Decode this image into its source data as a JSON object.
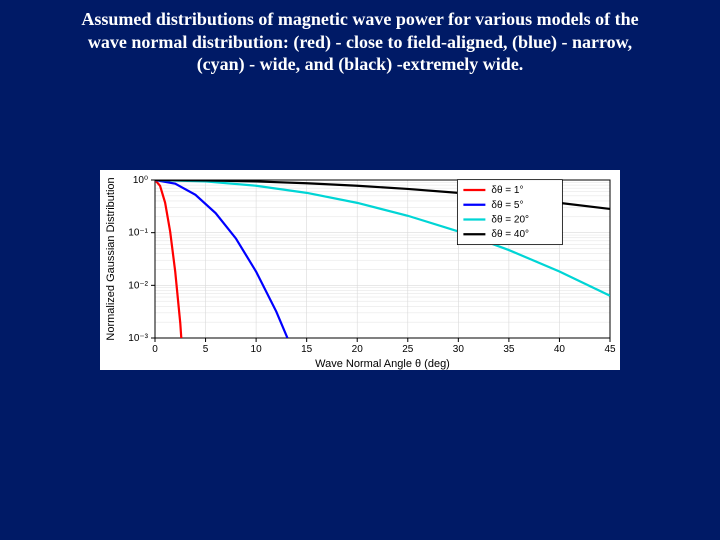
{
  "title_line1": "Assumed distributions of magnetic wave power for various models of the",
  "title_line2": "wave normal distribution: (red) - close to field-aligned, (blue) - narrow,",
  "title_line3": "(cyan) - wide, and (black) -extremely wide.",
  "chart": {
    "type": "line",
    "background_color": "#ffffff",
    "grid_color": "#d9d9d9",
    "axis_color": "#000000",
    "xlabel": "Wave Normal Angle θ (deg)",
    "ylabel": "Normalized Gaussian Distribution",
    "label_fontsize": 11,
    "tick_fontsize": 10,
    "xlim": [
      0,
      45
    ],
    "xticks": [
      0,
      5,
      10,
      15,
      20,
      25,
      30,
      35,
      40,
      45
    ],
    "ylim_log": [
      -3,
      0
    ],
    "yticks_exp": [
      -3,
      -2,
      -1,
      0
    ],
    "ytick_labels": [
      "10⁻³",
      "10⁻²",
      "10⁻¹",
      "10⁰"
    ],
    "series": [
      {
        "name": "red",
        "color": "#ff0000",
        "width": 2.2,
        "legend": "δθ = 1°",
        "points": [
          {
            "x": 0,
            "y": 0
          },
          {
            "x": 0.5,
            "y": -0.11
          },
          {
            "x": 1.0,
            "y": -0.43
          },
          {
            "x": 1.5,
            "y": -0.98
          },
          {
            "x": 2.0,
            "y": -1.74
          },
          {
            "x": 2.5,
            "y": -2.72
          },
          {
            "x": 2.6,
            "y": -3.0
          }
        ]
      },
      {
        "name": "blue",
        "color": "#0000ff",
        "width": 2.2,
        "legend": "δθ = 5°",
        "points": [
          {
            "x": 0,
            "y": 0
          },
          {
            "x": 2,
            "y": -0.07
          },
          {
            "x": 4,
            "y": -0.28
          },
          {
            "x": 6,
            "y": -0.63
          },
          {
            "x": 8,
            "y": -1.11
          },
          {
            "x": 10,
            "y": -1.74
          },
          {
            "x": 12,
            "y": -2.5
          },
          {
            "x": 13.1,
            "y": -3.0
          }
        ]
      },
      {
        "name": "cyan",
        "color": "#00d5d5",
        "width": 2.2,
        "legend": "δθ = 20°",
        "points": [
          {
            "x": 0,
            "y": 0
          },
          {
            "x": 5,
            "y": -0.027
          },
          {
            "x": 10,
            "y": -0.109
          },
          {
            "x": 15,
            "y": -0.244
          },
          {
            "x": 20,
            "y": -0.434
          },
          {
            "x": 25,
            "y": -0.679
          },
          {
            "x": 30,
            "y": -0.977
          },
          {
            "x": 35,
            "y": -1.33
          },
          {
            "x": 40,
            "y": -1.737
          },
          {
            "x": 45,
            "y": -2.198
          }
        ]
      },
      {
        "name": "black",
        "color": "#000000",
        "width": 2.2,
        "legend": "δθ = 40°",
        "points": [
          {
            "x": 0,
            "y": 0
          },
          {
            "x": 5,
            "y": -0.0068
          },
          {
            "x": 10,
            "y": -0.0272
          },
          {
            "x": 15,
            "y": -0.0611
          },
          {
            "x": 20,
            "y": -0.1086
          },
          {
            "x": 25,
            "y": -0.1697
          },
          {
            "x": 30,
            "y": -0.2443
          },
          {
            "x": 35,
            "y": -0.3325
          },
          {
            "x": 40,
            "y": -0.4343
          },
          {
            "x": 45,
            "y": -0.5496
          }
        ]
      }
    ],
    "legend": {
      "x": 30.5,
      "y_top": -0.05,
      "row_h": 0.28,
      "box": {
        "stroke": "#000000",
        "fill": "#ffffff"
      }
    }
  }
}
